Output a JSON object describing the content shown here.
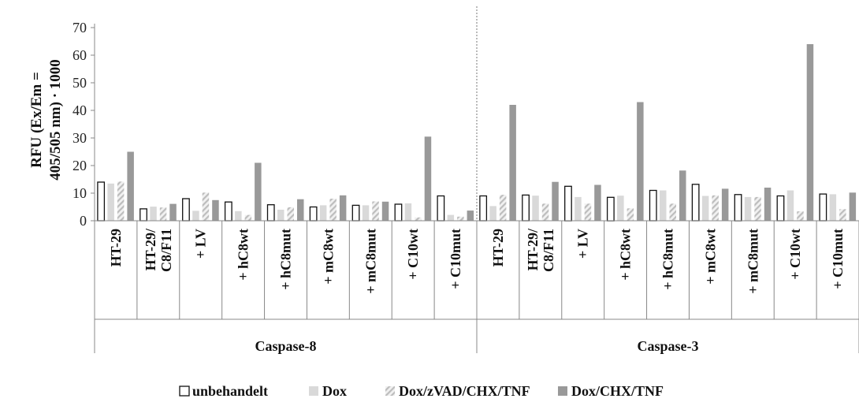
{
  "chart_data": {
    "type": "bar",
    "ylabel": [
      "RFU (Ex/Em =",
      "405/505 nm) · 1000"
    ],
    "ylim": [
      0,
      70
    ],
    "yticks": [
      0,
      10,
      20,
      30,
      40,
      50,
      60,
      70
    ],
    "groups": [
      {
        "label": "Caspase-8",
        "categories": [
          "HT-29",
          "HT-29/\nC8/F11",
          "+ LV",
          "+ hC8wt",
          "+ hC8mut",
          "+ mC8wt",
          "+ mC8mut",
          "+ C10wt",
          "+ C10mut"
        ]
      },
      {
        "label": "Caspase-3",
        "categories": [
          "HT-29",
          "HT-29/\nC8/F11",
          "+ LV",
          "+ hC8wt",
          "+ hC8mut",
          "+ mC8wt",
          "+ mC8mut",
          "+ C10wt",
          "+ C10mut"
        ]
      }
    ],
    "series": [
      {
        "name": "unbehandelt",
        "style": "outline",
        "values": [
          14,
          4.3,
          8,
          6.8,
          5.8,
          5,
          5.6,
          6,
          9,
          9,
          9.3,
          12.5,
          8.5,
          11,
          13.2,
          9.5,
          9,
          9.7
        ]
      },
      {
        "name": "Dox",
        "style": "light",
        "color": "#d9d9d9",
        "values": [
          13.5,
          5.1,
          3.6,
          3.5,
          4,
          5.6,
          5.6,
          6.3,
          2.1,
          5.3,
          9.1,
          8.6,
          9.1,
          11,
          9,
          8.6,
          11,
          9.6
        ]
      },
      {
        "name": "Dox/zVAD/CHX/TNF",
        "style": "hatch",
        "values": [
          14.2,
          4.8,
          10.2,
          2.1,
          4.9,
          8,
          7,
          1.2,
          1.5,
          9.4,
          6.2,
          6.2,
          4.5,
          6.2,
          9.2,
          8.6,
          3.4,
          4.2
        ]
      },
      {
        "name": "Dox/CHX/TNF",
        "style": "dark",
        "color": "#999999",
        "values": [
          25,
          6.1,
          7.5,
          21,
          7.8,
          9.2,
          6.9,
          30.5,
          3.7,
          42,
          14.1,
          13,
          43,
          18.2,
          11.6,
          12,
          64,
          10.2
        ]
      }
    ],
    "legend_position": "bottom"
  }
}
